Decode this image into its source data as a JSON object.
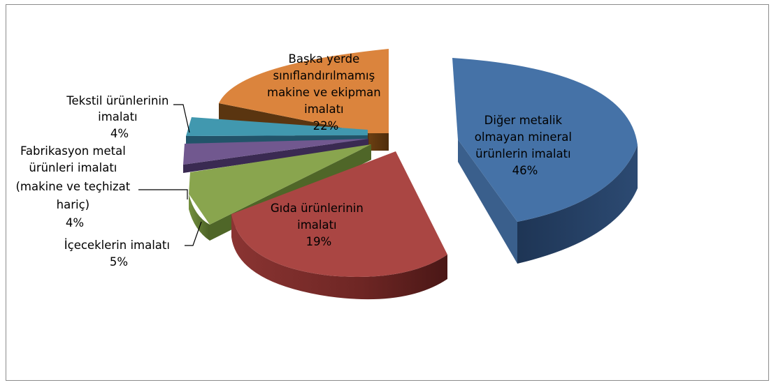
{
  "chart_data": {
    "type": "pie",
    "title": "",
    "slices": [
      {
        "id": "metallic",
        "lines": [
          "Diğer metalik",
          "olmayan mineral",
          "ürünlerin imalatı"
        ],
        "percent_label": "46%",
        "value": 46,
        "color": "#4572A7"
      },
      {
        "id": "food",
        "lines": [
          "Gıda ürünlerinin",
          "imalatı"
        ],
        "percent_label": "19%",
        "value": 19,
        "color": "#AA4643"
      },
      {
        "id": "beverage",
        "lines": [
          "İçeceklerin imalatı"
        ],
        "percent_label": "5%",
        "value": 5,
        "color": "#89A54E"
      },
      {
        "id": "fabmetal",
        "lines": [
          "Fabrikasyon metal",
          "ürünleri imalatı",
          "(makine ve teçhizat",
          "hariç)"
        ],
        "percent_label": "4%",
        "value": 4,
        "color": "#71588F"
      },
      {
        "id": "textile",
        "lines": [
          "Tekstil ürünlerinin",
          "imalatı"
        ],
        "percent_label": "4%",
        "value": 4,
        "color": "#4198AF"
      },
      {
        "id": "machinery",
        "lines": [
          "Başka yerde",
          "sınıflandırılmamış",
          "makine ve ekipman",
          "imalatı"
        ],
        "percent_label": "22%",
        "value": 22,
        "color": "#DB843D"
      }
    ]
  }
}
